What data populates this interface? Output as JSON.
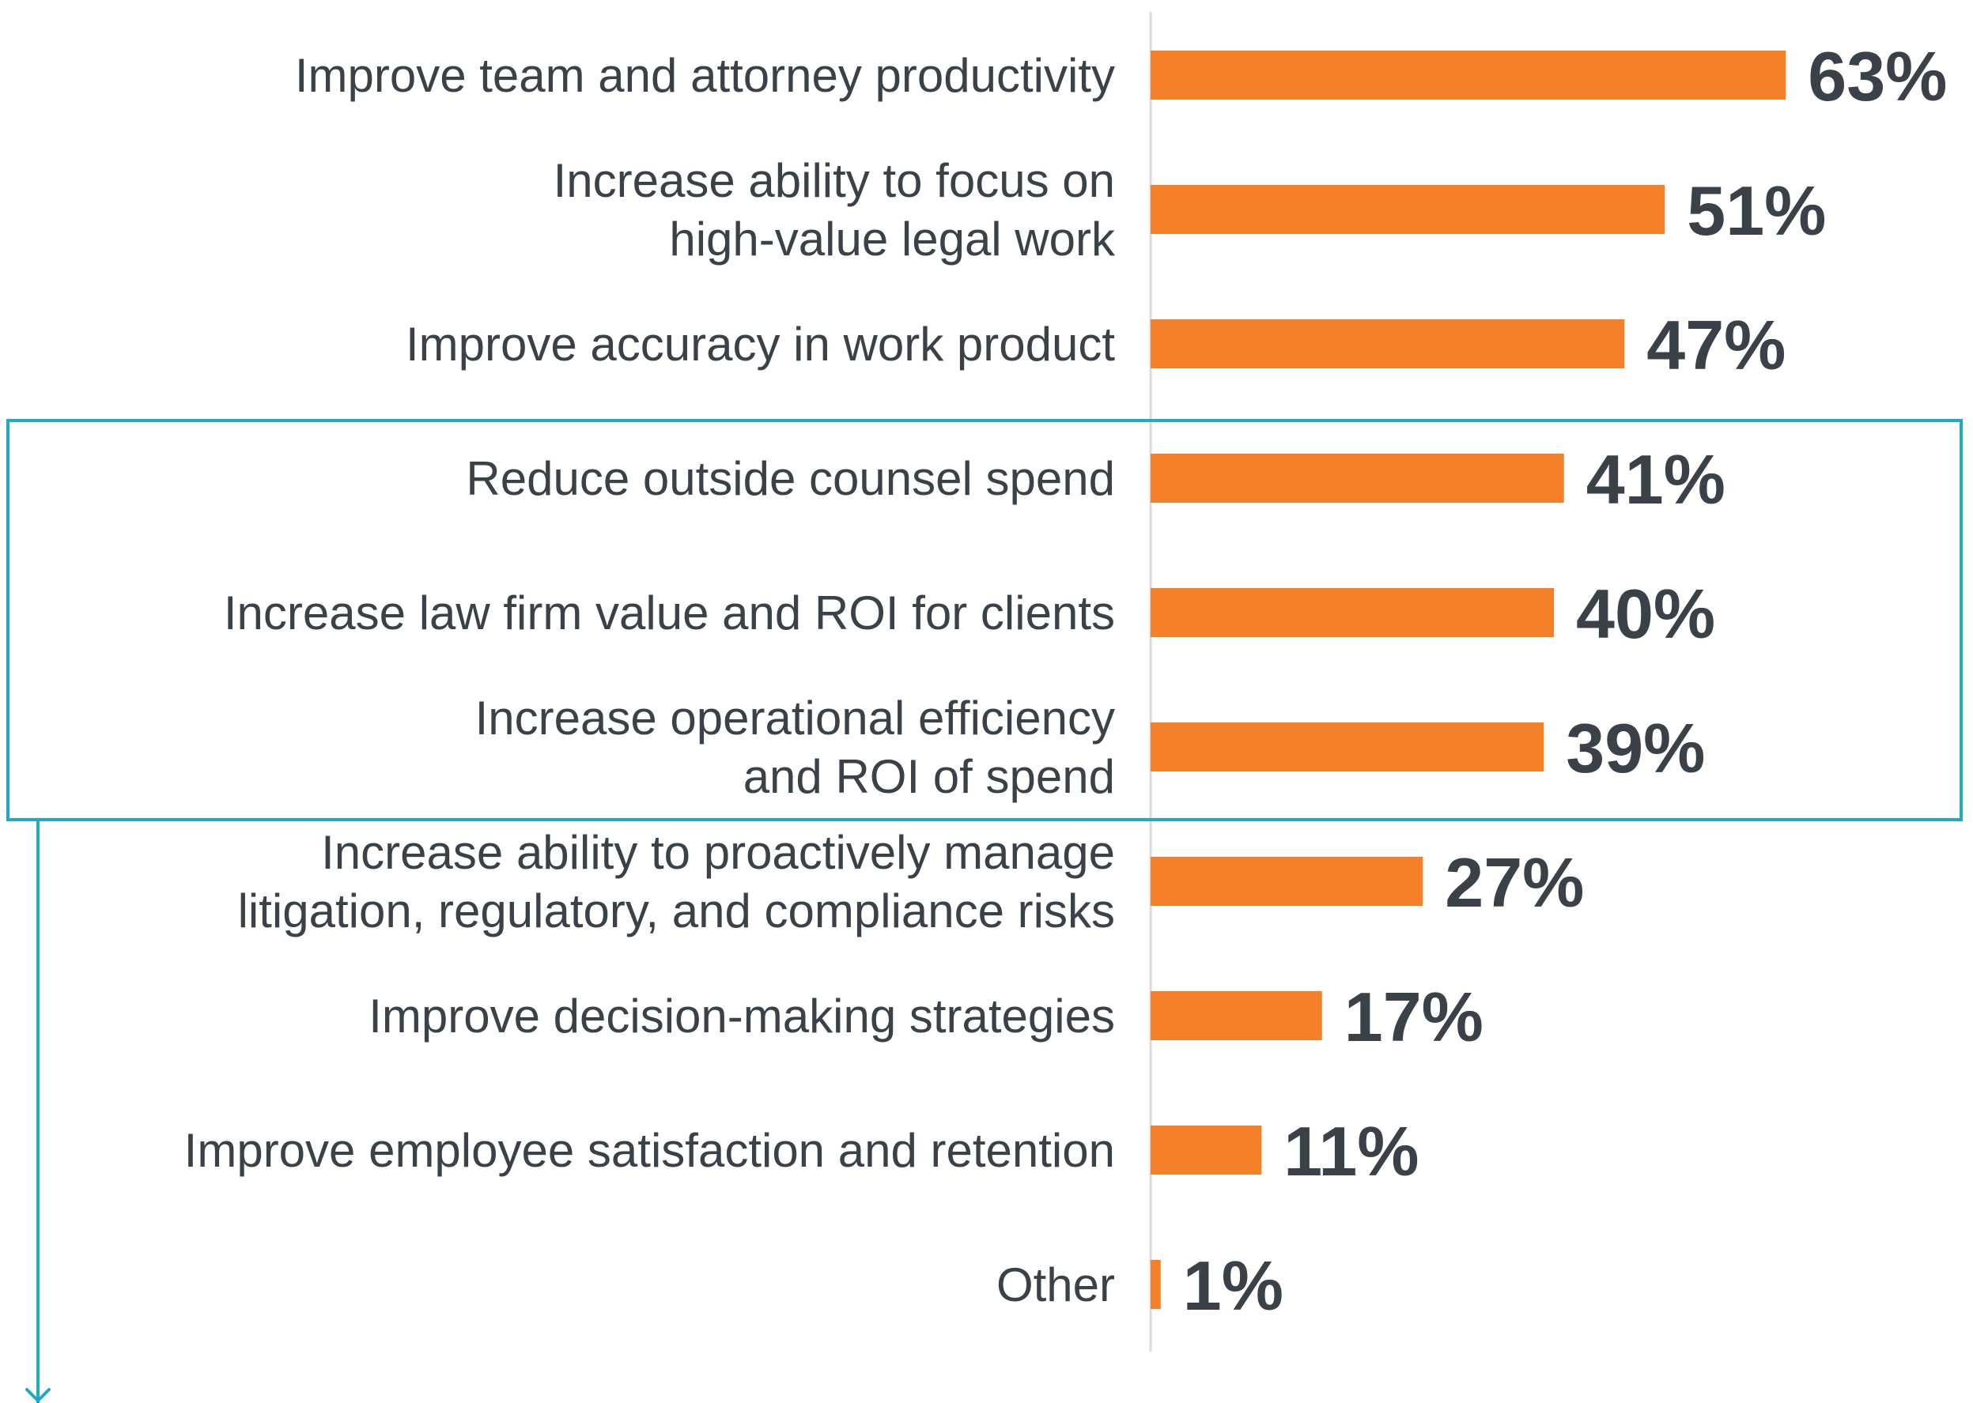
{
  "colors": {
    "bar": "#f4812a",
    "text": "#3b4149",
    "axis": "#d9d9d9",
    "highlight": "#22a9c8"
  },
  "chart_data": {
    "type": "bar",
    "orientation": "horizontal",
    "categories": [
      [
        "Improve team and attorney productivity"
      ],
      [
        "Increase ability to focus on",
        "high-value legal work"
      ],
      [
        "Improve accuracy in work product"
      ],
      [
        "Reduce outside counsel spend"
      ],
      [
        "Increase law firm value and ROI for clients"
      ],
      [
        "Increase operational efficiency",
        "and ROI of spend"
      ],
      [
        "Increase ability to proactively manage",
        "litigation, regulatory, and compliance risks"
      ],
      [
        "Improve decision-making strategies"
      ],
      [
        "Improve employee satisfaction and retention"
      ],
      [
        "Other"
      ]
    ],
    "values": [
      63,
      51,
      47,
      41,
      40,
      39,
      27,
      17,
      11,
      1
    ],
    "value_labels": [
      "63%",
      "51%",
      "47%",
      "41%",
      "40%",
      "39%",
      "27%",
      "17%",
      "11%",
      "1%"
    ],
    "xlim": [
      0,
      100
    ],
    "highlighted_categories": [
      3,
      4,
      5
    ],
    "grid": false,
    "legend": "none"
  }
}
